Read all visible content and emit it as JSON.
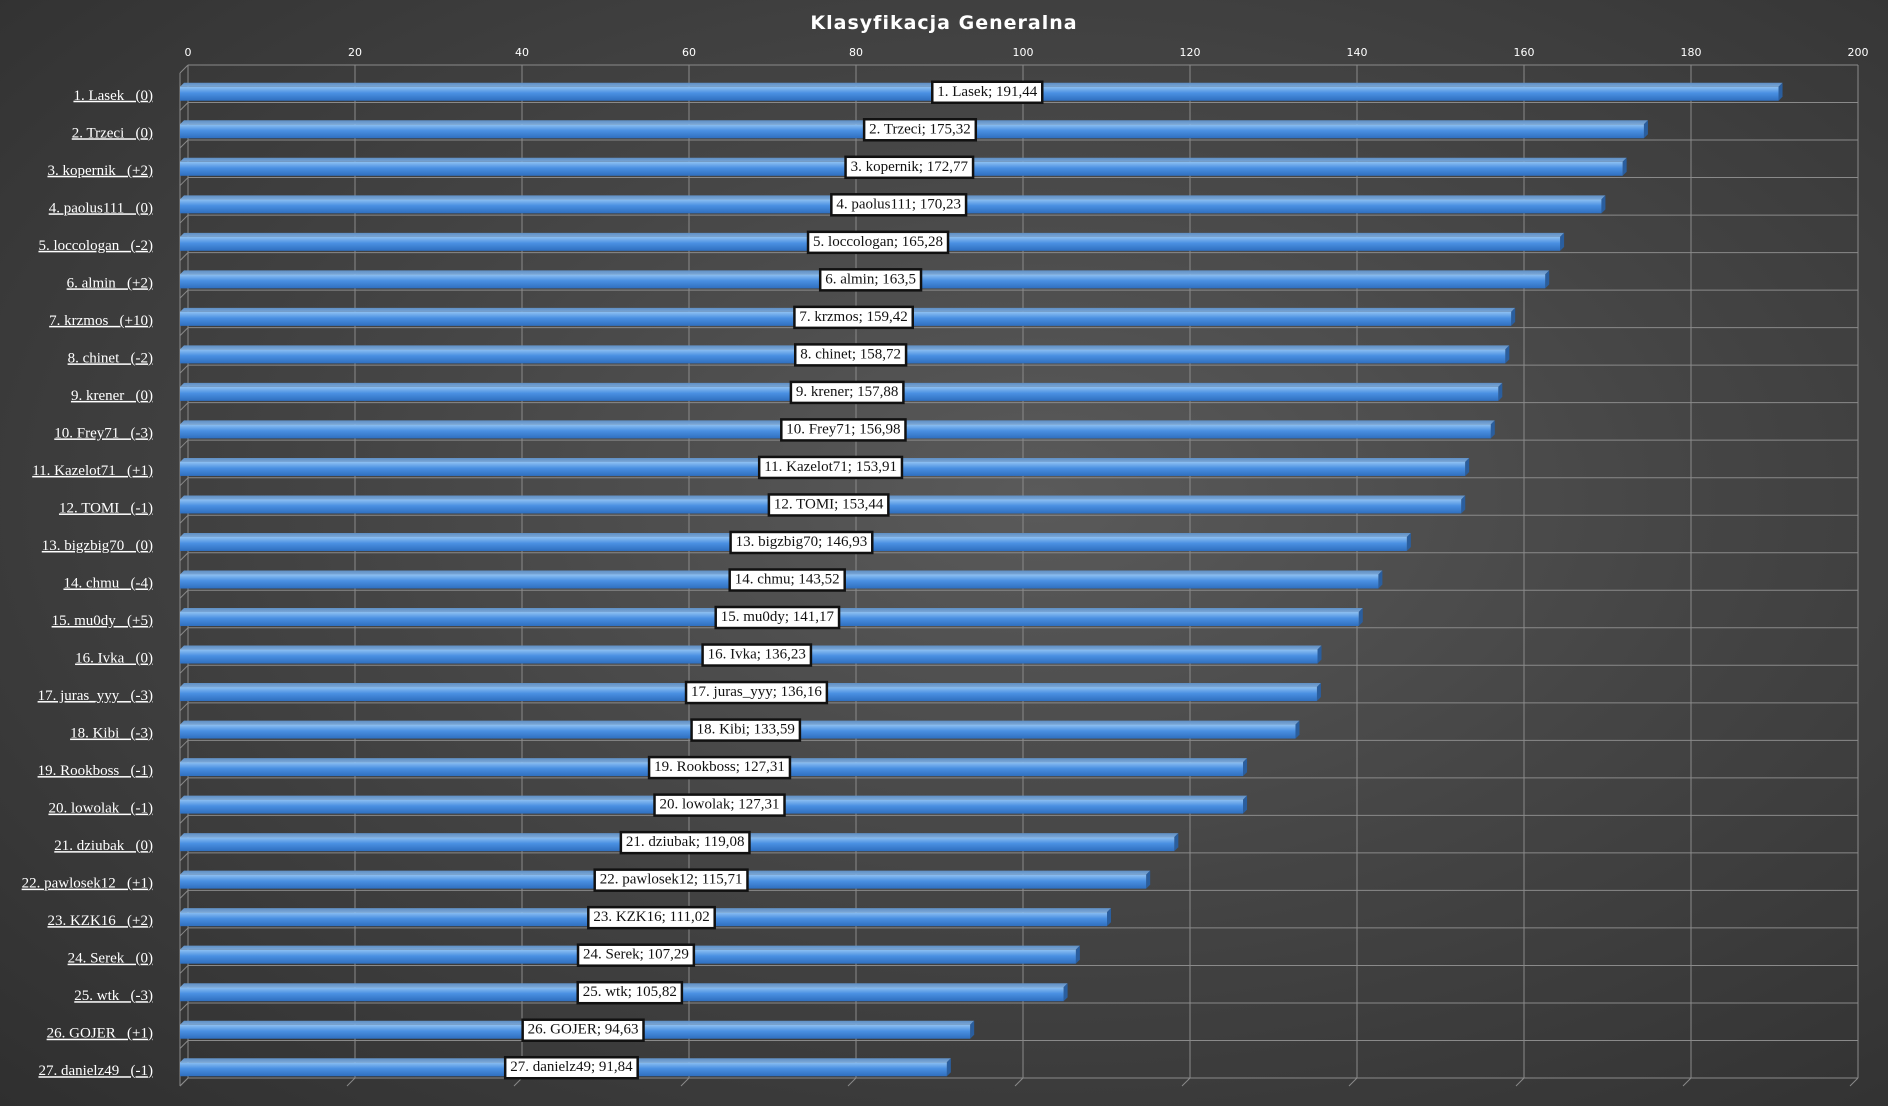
{
  "chart_data": {
    "type": "bar",
    "orientation": "horizontal",
    "title": "Klasyfikacja  Generalna",
    "xlim": [
      0,
      200
    ],
    "x_ticks": [
      0,
      20,
      40,
      60,
      80,
      100,
      120,
      140,
      160,
      180,
      200
    ],
    "grid": true,
    "bar_color": "#4a90e2",
    "categories": [
      "1. Lasek   (0)",
      "2. Trzeci   (0)",
      "3. kopernik   (+2)",
      "4. paolus111   (0)",
      "5. loccologan   (-2)",
      "6. almin   (+2)",
      "7. krzmos   (+10)",
      "8. chinet   (-2)",
      "9. krener   (0)",
      "10. Frey71   (-3)",
      "11. Kazelot71   (+1)",
      "12. TOMI   (-1)",
      "13. bigzbig70   (0)",
      "14. chmu   (-4)",
      "15. mu0dy   (+5)",
      "16. Ivka   (0)",
      "17. juras_yyy   (-3)",
      "18. Kibi   (-3)",
      "19. Rookboss   (-1)",
      "20. lowolak   (-1)",
      "21. dziubak   (0)",
      "22. pawlosek12   (+1)",
      "23. KZK16   (+2)",
      "24. Serek   (0)",
      "25. wtk   (-3)",
      "26. GOJER   (+1)",
      "27. danielz49   (-1)"
    ],
    "values": [
      191.44,
      175.32,
      172.77,
      170.23,
      165.28,
      163.5,
      159.42,
      158.72,
      157.88,
      156.98,
      153.91,
      153.44,
      146.93,
      143.52,
      141.17,
      136.23,
      136.16,
      133.59,
      127.31,
      127.31,
      119.08,
      115.71,
      111.02,
      107.29,
      105.82,
      94.63,
      91.84
    ],
    "data_labels": [
      "1. Lasek; 191,44",
      "2. Trzeci; 175,32",
      "3. kopernik; 172,77",
      "4. paolus111; 170,23",
      "5. loccologan; 165,28",
      "6. almin; 163,5",
      "7. krzmos; 159,42",
      "8. chinet; 158,72",
      "9. krener; 157,88",
      "10. Frey71; 156,98",
      "11. Kazelot71; 153,91",
      "12. TOMI; 153,44",
      "13. bigzbig70; 146,93",
      "14. chmu; 143,52",
      "15. mu0dy; 141,17",
      "16. Ivka; 136,23",
      "17. juras_yyy; 136,16",
      "18. Kibi; 133,59",
      "19. Rookboss; 127,31",
      "20. lowolak; 127,31",
      "21. dziubak; 119,08",
      "22. pawlosek12; 115,71",
      "23. KZK16; 111,02",
      "24. Serek; 107,29",
      "25. wtk; 105,82",
      "26. GOJER; 94,63",
      "27. danielz49; 91,84"
    ]
  }
}
